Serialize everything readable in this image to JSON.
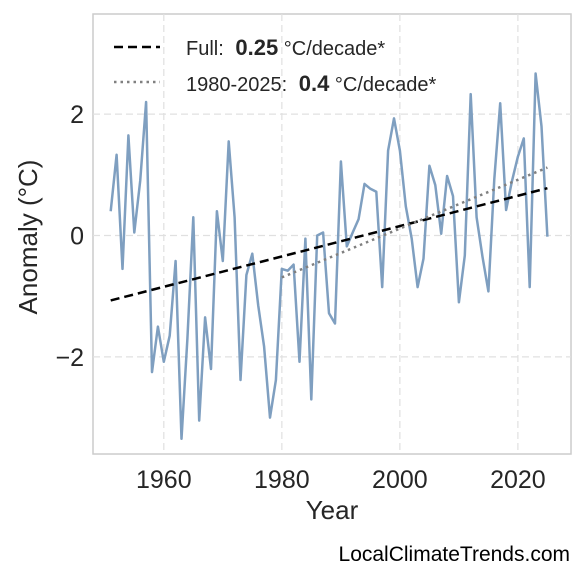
{
  "chart_data": {
    "type": "line",
    "xlabel": "Year",
    "ylabel": "Anomaly (°C)",
    "xlim": [
      1948,
      2029
    ],
    "ylim": [
      -3.6,
      3.65
    ],
    "x_ticks": [
      1960,
      1980,
      2000,
      2020
    ],
    "y_ticks": [
      -2,
      0,
      2
    ],
    "y_tick_labels": [
      "−2",
      "0",
      "2"
    ],
    "grid": true,
    "legend_position": "top-left",
    "colors": {
      "series": "#7f9fc0",
      "trend_full": "#000000",
      "trend_recent": "#808080",
      "grid": "#e0e0e0",
      "frame": "#cccccc"
    },
    "series": [
      {
        "x": [
          1951,
          1952,
          1953,
          1954,
          1955,
          1956,
          1957,
          1958,
          1959,
          1960,
          1961,
          1962,
          1963,
          1964,
          1965,
          1966,
          1967,
          1968,
          1969,
          1970,
          1971,
          1972,
          1973,
          1974,
          1975,
          1976,
          1977,
          1978,
          1979,
          1980,
          1981,
          1982,
          1983,
          1984,
          1985,
          1986,
          1987,
          1988,
          1989,
          1990,
          1991,
          1992,
          1993,
          1994,
          1995,
          1996,
          1997,
          1998,
          1999,
          2000,
          2001,
          2002,
          2003,
          2004,
          2005,
          2006,
          2007,
          2008,
          2009,
          2010,
          2011,
          2012,
          2013,
          2014,
          2015,
          2016,
          2017,
          2018,
          2019,
          2020,
          2021,
          2022,
          2023,
          2024,
          2025
        ],
        "values": [
          0.4,
          1.33,
          -0.55,
          1.65,
          0.05,
          0.9,
          2.2,
          -2.25,
          -1.5,
          -2.08,
          -1.65,
          -0.42,
          -3.35,
          -1.7,
          0.3,
          -3.05,
          -1.35,
          -2.2,
          0.4,
          -0.42,
          1.55,
          0.3,
          -2.38,
          -0.65,
          -0.3,
          -1.15,
          -1.83,
          -3.0,
          -2.38,
          -0.55,
          -0.58,
          -0.48,
          -2.08,
          -0.05,
          -2.7,
          0.0,
          0.05,
          -1.28,
          -1.45,
          1.22,
          -0.18,
          0.05,
          0.27,
          0.85,
          0.77,
          0.72,
          -0.85,
          1.4,
          1.93,
          1.4,
          0.48,
          -0.05,
          -0.85,
          -0.38,
          1.15,
          0.83,
          0.03,
          0.98,
          0.65,
          -1.1,
          -0.33,
          2.33,
          0.3,
          -0.35,
          -0.92,
          0.93,
          2.18,
          0.42,
          0.9,
          1.3,
          1.6,
          -0.85,
          2.67,
          1.8,
          -0.02
        ]
      }
    ],
    "trends": [
      {
        "label": "Full:",
        "rate": "0.25",
        "unit": "°C/decade*",
        "x": [
          1951,
          2025
        ],
        "y": [
          -1.07,
          0.78
        ]
      },
      {
        "label": "1980-2025:",
        "rate": "0.4",
        "unit": "°C/decade*",
        "x": [
          1980,
          2025
        ],
        "y": [
          -0.69,
          1.12
        ]
      }
    ]
  },
  "watermark": "LocalClimateTrends.com"
}
